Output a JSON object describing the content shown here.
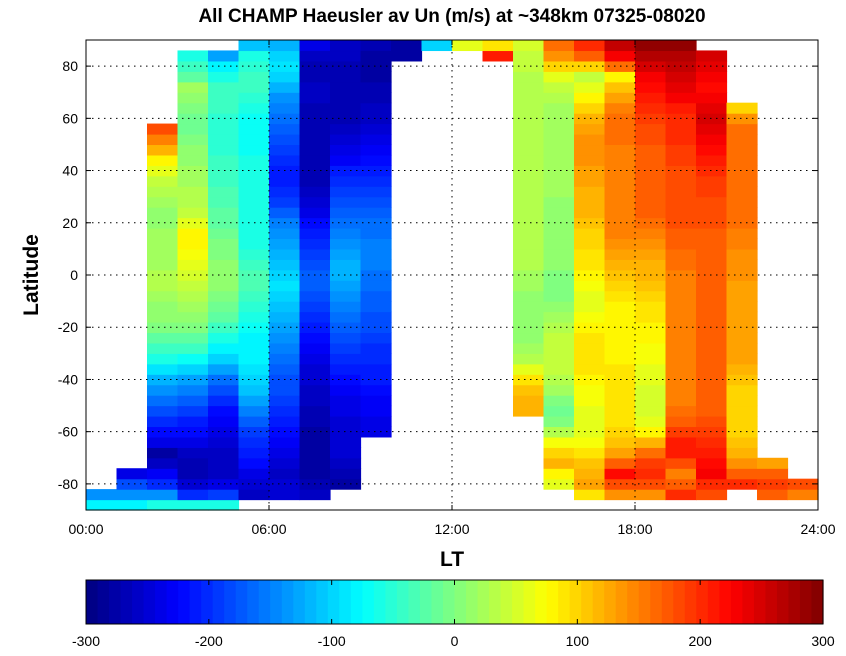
{
  "chart_data": {
    "type": "heatmap",
    "title": "All CHAMP Haeusler av Un (m/s) at ~348km 07325-08020",
    "xlabel": "LT",
    "ylabel": "Latitude",
    "xlim": [
      0,
      24
    ],
    "ylim": [
      -90,
      90
    ],
    "x_ticks": [
      0,
      6,
      12,
      18,
      24
    ],
    "x_tick_labels": [
      "00:00",
      "06:00",
      "12:00",
      "18:00",
      "24:00"
    ],
    "y_ticks": [
      -80,
      -60,
      -40,
      -20,
      0,
      20,
      40,
      60,
      80
    ],
    "y_tick_labels": [
      "-80",
      "-60",
      "-40",
      "-20",
      "0",
      "20",
      "40",
      "60",
      "80"
    ],
    "grid": true,
    "colorbar": {
      "min": -300,
      "max": 300,
      "ticks": [
        -300,
        -200,
        -100,
        0,
        100,
        200,
        300
      ],
      "tick_labels": [
        "-300",
        "-200",
        "-100",
        "0",
        "100",
        "200",
        "300"
      ],
      "colormap": "jet",
      "placement": "bottom"
    },
    "x_centers_hours": [
      0.5,
      1.5,
      2.5,
      3.5,
      4.5,
      5.5,
      6.5,
      7.5,
      8.5,
      9.5,
      10.5,
      11.5,
      12.5,
      13.5,
      14.5,
      15.5,
      16.5,
      17.5,
      18.5,
      19.5,
      20.5,
      21.5,
      22.5,
      23.5
    ],
    "latitude_bin_deg": 4,
    "columns": [
      {
        "lt": 0.5,
        "lat_min": -90,
        "lat_max": -82,
        "values": [
          -80,
          -140
        ]
      },
      {
        "lt": 1.5,
        "lat_min": -90,
        "lat_max": -74,
        "values": [
          -80,
          -140,
          -180,
          -240
        ]
      },
      {
        "lt": 2.5,
        "lat_min": -90,
        "lat_max": 58,
        "values": [
          -60,
          -140,
          -200,
          -230,
          -260,
          -280,
          -240,
          -220,
          -200,
          -180,
          -160,
          -140,
          -120,
          -90,
          -60,
          -40,
          -20,
          0,
          10,
          10,
          20,
          30,
          30,
          20,
          20,
          20,
          20,
          10,
          10,
          20,
          30,
          40,
          60,
          80,
          120,
          150,
          180
        ]
      },
      {
        "lt": 3.5,
        "lat_min": -90,
        "lat_max": 86,
        "values": [
          -60,
          -200,
          -250,
          -270,
          -270,
          -260,
          -240,
          -220,
          -210,
          -190,
          -170,
          -150,
          -130,
          -100,
          -70,
          -40,
          -20,
          0,
          10,
          20,
          30,
          40,
          50,
          60,
          70,
          80,
          80,
          60,
          40,
          30,
          30,
          20,
          20,
          10,
          10,
          0,
          -10,
          -10,
          0,
          10,
          20,
          -20,
          -40,
          -60
        ]
      },
      {
        "lt": 4.5,
        "lat_min": -90,
        "lat_max": 86,
        "values": [
          -60,
          -190,
          -240,
          -260,
          -260,
          -260,
          -250,
          -240,
          -230,
          -220,
          -200,
          -180,
          -160,
          -130,
          -100,
          -80,
          -60,
          -40,
          -20,
          -10,
          0,
          10,
          10,
          10,
          0,
          0,
          -10,
          -20,
          -20,
          -30,
          -30,
          -40,
          -40,
          -40,
          -50,
          -50,
          -50,
          -50,
          -40,
          -40,
          -40,
          -60,
          -80,
          -130
        ]
      },
      {
        "lt": 5.5,
        "lat_min": -86,
        "lat_max": 90,
        "values": [
          -260,
          -250,
          -240,
          -220,
          -210,
          -200,
          -190,
          -170,
          -150,
          -130,
          -110,
          -100,
          -90,
          -80,
          -80,
          -80,
          -70,
          -60,
          -50,
          -40,
          -30,
          -30,
          -40,
          -50,
          -60,
          -60,
          -60,
          -60,
          -60,
          -60,
          -60,
          -60,
          -60,
          -70,
          -70,
          -70,
          -70,
          -60,
          -50,
          -40,
          -40,
          -50,
          -60,
          -110
        ]
      },
      {
        "lt": 6.5,
        "lat_min": -86,
        "lat_max": 90,
        "values": [
          -250,
          -250,
          -260,
          -250,
          -240,
          -230,
          -220,
          -210,
          -200,
          -190,
          -180,
          -180,
          -170,
          -160,
          -150,
          -140,
          -130,
          -120,
          -110,
          -100,
          -90,
          -100,
          -110,
          -120,
          -130,
          -140,
          -150,
          -170,
          -190,
          -200,
          -210,
          -210,
          -200,
          -190,
          -180,
          -170,
          -160,
          -150,
          -140,
          -120,
          -100,
          -90,
          -100,
          -120
        ]
      },
      {
        "lt": 7.5,
        "lat_min": -86,
        "lat_max": 90,
        "values": [
          -260,
          -270,
          -280,
          -280,
          -280,
          -280,
          -280,
          -270,
          -270,
          -260,
          -260,
          -250,
          -250,
          -240,
          -230,
          -220,
          -210,
          -200,
          -190,
          -180,
          -170,
          -170,
          -180,
          -190,
          -200,
          -210,
          -220,
          -240,
          -250,
          -260,
          -270,
          -270,
          -270,
          -270,
          -270,
          -270,
          -270,
          -270,
          -260,
          -260,
          -270,
          -270,
          -260,
          -240
        ]
      },
      {
        "lt": 8.5,
        "lat_min": -82,
        "lat_max": 90,
        "values": [
          -280,
          -270,
          -260,
          -250,
          -250,
          -250,
          -250,
          -240,
          -240,
          -230,
          -220,
          -210,
          -200,
          -190,
          -180,
          -170,
          -160,
          -150,
          -140,
          -130,
          -120,
          -120,
          -130,
          -140,
          -150,
          -160,
          -170,
          -180,
          -190,
          -200,
          -210,
          -230,
          -240,
          -250,
          -260,
          -270,
          -270,
          -270,
          -270,
          -270,
          -270,
          -260,
          -260
        ]
      },
      {
        "lt": 9.5,
        "lat_min": -62,
        "lat_max": 90,
        "values": [
          -240,
          -240,
          -230,
          -230,
          -220,
          -210,
          -210,
          -200,
          -200,
          -190,
          -180,
          -180,
          -170,
          -170,
          -160,
          -160,
          -150,
          -150,
          -150,
          -160,
          -160,
          -170,
          -180,
          -190,
          -200,
          -210,
          -220,
          -230,
          -240,
          -250,
          -260,
          -260,
          -270,
          -270,
          -280,
          -280,
          -280,
          -270
        ]
      },
      {
        "lt": 10.5,
        "lat_min": 82,
        "lat_max": 90,
        "values": [
          -280,
          -280
        ]
      },
      {
        "lt": 11.5,
        "lat_min": 86,
        "lat_max": 90,
        "values": [
          -100
        ]
      },
      {
        "lt": 12.5,
        "lat_min": 86,
        "lat_max": 90,
        "values": [
          60
        ]
      },
      {
        "lt": 13.5,
        "lat_min": 82,
        "lat_max": 90,
        "values": [
          210,
          90
        ]
      },
      {
        "lt": 14.5,
        "lat_min": -54,
        "lat_max": 90,
        "values": [
          120,
          120,
          110,
          90,
          60,
          30,
          20,
          10,
          10,
          10,
          10,
          10,
          20,
          20,
          30,
          30,
          30,
          30,
          30,
          30,
          30,
          30,
          30,
          30,
          30,
          30,
          30,
          30,
          30,
          30,
          30,
          30,
          30,
          40,
          40,
          50,
          100
        ]
      },
      {
        "lt": 15.5,
        "lat_min": -82,
        "lat_max": 90,
        "values": [
          60,
          80,
          120,
          100,
          70,
          30,
          0,
          -10,
          0,
          20,
          30,
          40,
          40,
          40,
          40,
          30,
          20,
          10,
          0,
          0,
          0,
          10,
          10,
          10,
          10,
          10,
          10,
          10,
          20,
          20,
          20,
          20,
          20,
          20,
          20,
          20,
          20,
          30,
          40,
          60,
          100,
          140,
          160
        ]
      },
      {
        "lt": 16.5,
        "lat_min": -86,
        "lat_max": 90,
        "values": [
          90,
          130,
          120,
          110,
          90,
          70,
          60,
          60,
          60,
          70,
          70,
          80,
          90,
          90,
          90,
          90,
          80,
          70,
          60,
          60,
          70,
          80,
          90,
          90,
          100,
          100,
          110,
          120,
          120,
          120,
          130,
          130,
          140,
          140,
          140,
          130,
          120,
          100,
          80,
          60,
          40,
          100,
          170,
          200
        ]
      },
      {
        "lt": 17.5,
        "lat_min": -86,
        "lat_max": 90,
        "values": [
          140,
          180,
          220,
          170,
          130,
          110,
          100,
          90,
          90,
          90,
          90,
          90,
          90,
          80,
          80,
          80,
          80,
          80,
          80,
          90,
          100,
          110,
          120,
          130,
          140,
          150,
          150,
          150,
          150,
          150,
          150,
          150,
          150,
          150,
          160,
          160,
          160,
          150,
          130,
          110,
          80,
          160,
          230,
          260
        ]
      },
      {
        "lt": 18.5,
        "lat_min": -86,
        "lat_max": 90,
        "values": [
          140,
          180,
          200,
          190,
          160,
          120,
          80,
          60,
          50,
          50,
          50,
          60,
          60,
          70,
          70,
          80,
          80,
          90,
          90,
          100,
          110,
          120,
          120,
          130,
          140,
          150,
          160,
          170,
          170,
          170,
          170,
          170,
          170,
          170,
          180,
          180,
          190,
          200,
          210,
          220,
          230,
          250,
          270,
          290
        ]
      },
      {
        "lt": 19.5,
        "lat_min": -86,
        "lat_max": 90,
        "values": [
          200,
          170,
          150,
          180,
          210,
          210,
          190,
          170,
          160,
          150,
          150,
          150,
          150,
          150,
          150,
          150,
          150,
          150,
          150,
          150,
          150,
          150,
          160,
          160,
          170,
          170,
          180,
          180,
          180,
          180,
          180,
          180,
          190,
          190,
          200,
          200,
          200,
          210,
          230,
          240,
          250,
          260,
          270,
          290
        ]
      },
      {
        "lt": 20.5,
        "lat_min": -86,
        "lat_max": 86,
        "values": [
          180,
          200,
          230,
          220,
          210,
          200,
          190,
          180,
          170,
          170,
          170,
          170,
          170,
          170,
          170,
          170,
          170,
          170,
          170,
          170,
          170,
          170,
          170,
          170,
          170,
          170,
          180,
          180,
          180,
          190,
          190,
          200,
          210,
          220,
          230,
          240,
          250,
          240,
          230,
          220,
          230,
          240,
          250
        ]
      },
      {
        "lt": 21.5,
        "lat_min": -82,
        "lat_max": 66,
        "values": [
          200,
          170,
          140,
          120,
          110,
          100,
          100,
          100,
          100,
          100,
          110,
          120,
          130,
          130,
          130,
          130,
          130,
          130,
          130,
          130,
          140,
          140,
          140,
          150,
          150,
          160,
          160,
          160,
          160,
          160,
          160,
          160,
          160,
          160,
          160,
          140,
          100
        ]
      },
      {
        "lt": 22.5,
        "lat_min": -86,
        "lat_max": -70,
        "values": [
          170,
          190,
          170,
          130
        ]
      },
      {
        "lt": 23.5,
        "lat_min": -86,
        "lat_max": -78,
        "values": [
          150,
          180
        ]
      }
    ]
  }
}
